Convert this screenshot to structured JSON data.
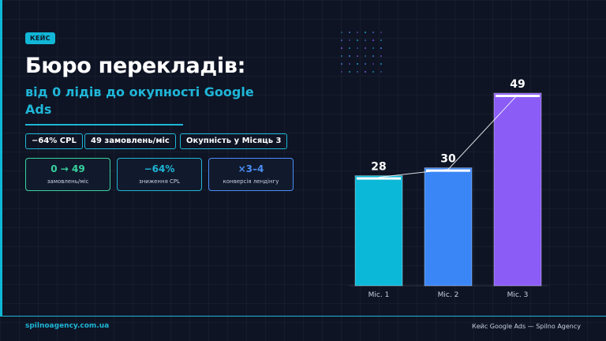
{
  "slide": {
    "badge": "КЕЙС",
    "title": "Бюро перекладів:",
    "subtitle": "від 0 лідів до окупності Google Ads",
    "chips": [
      {
        "label": "−64% CPL"
      },
      {
        "label": "49 замовлень/міс"
      },
      {
        "label": "Окупність у Місяць 3"
      }
    ],
    "kpis": [
      {
        "value": "0 → 49",
        "label": "замовлень/міс",
        "color": "#38d39f"
      },
      {
        "value": "−64%",
        "label": "зниження CPL",
        "color": "#1fb6d8"
      },
      {
        "value": "×3–4",
        "label": "конверсія лендінгу",
        "color": "#4b8df7"
      }
    ]
  },
  "chart_data": {
    "type": "bar",
    "categories": [
      "Міс. 1",
      "Міс. 2",
      "Міс. 3"
    ],
    "values": [
      28,
      30,
      49
    ],
    "colors": [
      "#0cb8d8",
      "#3b86f6",
      "#8b5cf6"
    ],
    "ylim": [
      0,
      49
    ],
    "trend_line": true
  },
  "footer": {
    "website": "spilnoagency.com.ua",
    "caption": "Кейс Google Ads — Spilno Agency"
  }
}
